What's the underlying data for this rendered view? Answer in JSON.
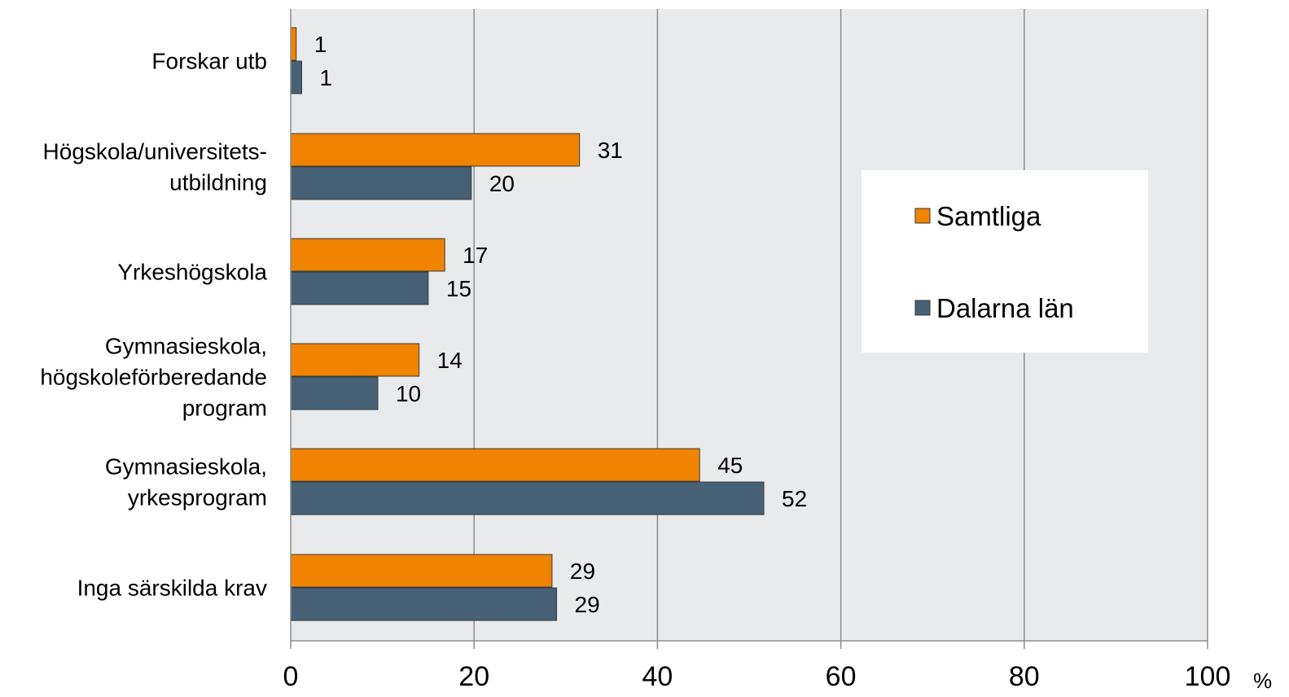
{
  "chart_data": {
    "type": "bar",
    "orientation": "horizontal",
    "categories": [
      [
        "Forskar utb"
      ],
      [
        "Högskola/universitets-",
        "utbildning"
      ],
      [
        "Yrkeshögskola"
      ],
      [
        "Gymnasieskola,",
        "högskoleförberedande",
        "program"
      ],
      [
        "Gymnasieskola,",
        "yrkesprogram"
      ],
      [
        "Inga särskilda krav"
      ]
    ],
    "series": [
      {
        "name": "Samtliga",
        "color": "#F08300",
        "values": [
          1,
          31,
          17,
          14,
          45,
          29
        ]
      },
      {
        "name": "Dalarna län",
        "color": "#476176",
        "values": [
          1,
          20,
          15,
          10,
          52,
          29
        ]
      }
    ],
    "plotted_values": [
      [
        0.6,
        31.5,
        16.8,
        14.0,
        44.6,
        28.5
      ],
      [
        1.2,
        19.7,
        15.0,
        9.5,
        51.6,
        29.0
      ]
    ],
    "xlim": [
      0,
      100
    ],
    "xticks": [
      "0",
      "20",
      "40",
      "60",
      "80",
      "100"
    ],
    "xunit": "%",
    "grid": true,
    "plot_background": "#E9EAEC",
    "legend_position": "right"
  }
}
